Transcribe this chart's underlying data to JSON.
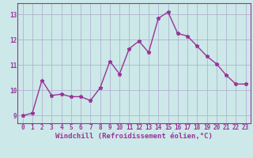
{
  "x": [
    0,
    1,
    2,
    3,
    4,
    5,
    6,
    7,
    8,
    9,
    10,
    11,
    12,
    13,
    14,
    15,
    16,
    17,
    18,
    19,
    20,
    21,
    22,
    23
  ],
  "y": [
    9.0,
    9.1,
    10.4,
    9.8,
    9.85,
    9.75,
    9.75,
    9.6,
    10.1,
    11.15,
    10.65,
    11.65,
    11.95,
    11.5,
    12.85,
    13.1,
    12.25,
    12.15,
    11.75,
    11.35,
    11.05,
    10.6,
    10.25,
    10.25
  ],
  "line_color": "#993399",
  "marker": "*",
  "marker_size": 3.5,
  "xlabel": "Windchill (Refroidissement éolien,°C)",
  "xlim": [
    -0.5,
    23.5
  ],
  "ylim": [
    8.7,
    13.45
  ],
  "yticks": [
    9,
    10,
    11,
    12,
    13
  ],
  "xticks": [
    0,
    1,
    2,
    3,
    4,
    5,
    6,
    7,
    8,
    9,
    10,
    11,
    12,
    13,
    14,
    15,
    16,
    17,
    18,
    19,
    20,
    21,
    22,
    23
  ],
  "bg_color": "#cce8e8",
  "grid_color": "#aaaacc",
  "xlabel_fontsize": 6.5,
  "tick_fontsize": 5.5,
  "line_width": 1.0,
  "spine_color": "#993399"
}
